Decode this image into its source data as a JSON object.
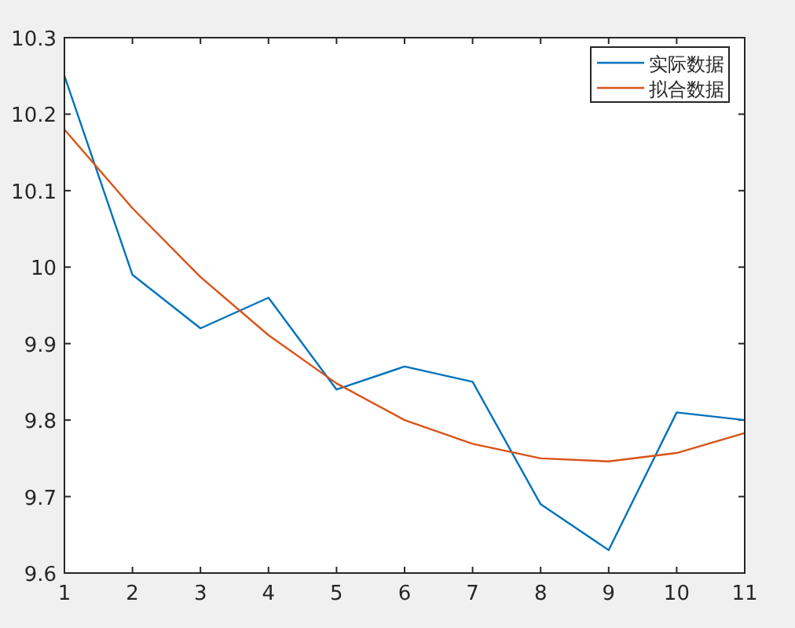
{
  "chart_data": {
    "type": "line",
    "x": [
      1,
      2,
      3,
      4,
      5,
      6,
      7,
      8,
      9,
      10,
      11
    ],
    "series": [
      {
        "name": "实际数据",
        "color": "#0072bd",
        "values": [
          10.25,
          9.99,
          9.92,
          9.96,
          9.84,
          9.87,
          9.85,
          9.69,
          9.63,
          9.81,
          9.8
        ]
      },
      {
        "name": "拟合数据",
        "color": "#d95319",
        "values": [
          10.18,
          10.077,
          9.987,
          9.911,
          9.848,
          9.8,
          9.769,
          9.75,
          9.746,
          9.757,
          9.783
        ]
      }
    ],
    "xlim": [
      1,
      11
    ],
    "xticks": [
      1,
      2,
      3,
      4,
      5,
      6,
      7,
      8,
      9,
      10,
      11
    ],
    "ylim": [
      9.6,
      10.3
    ],
    "yticks": [
      9.6,
      9.7,
      9.8,
      9.9,
      10,
      10.1,
      10.2,
      10.3
    ],
    "legend": "top right"
  }
}
